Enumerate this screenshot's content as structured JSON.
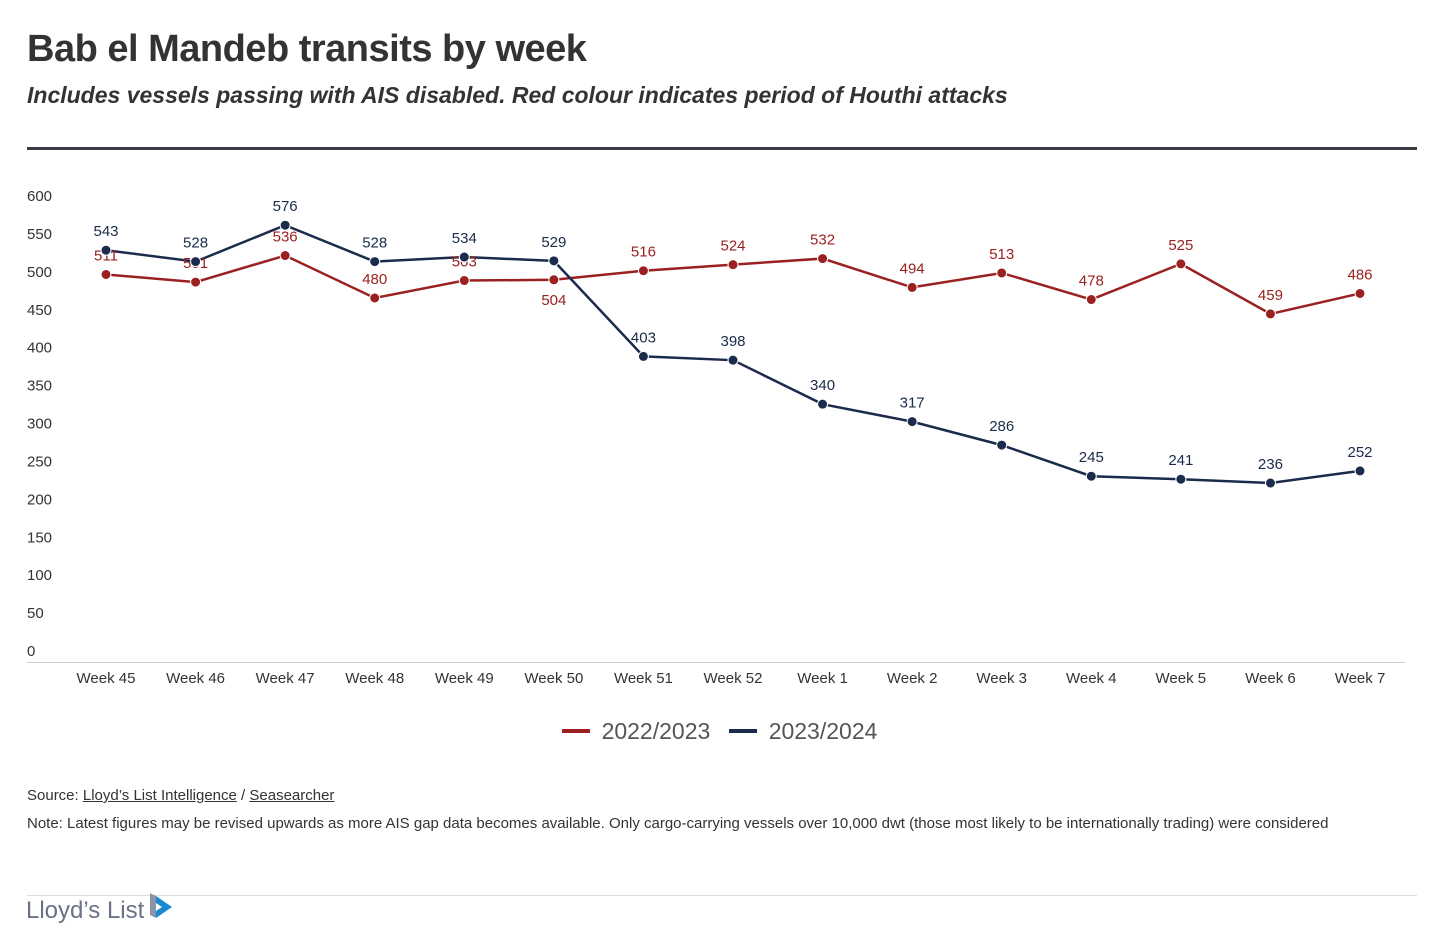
{
  "title": "Bab el Mandeb transits by week",
  "subtitle": "Includes vessels passing with AIS disabled. Red colour indicates period of Houthi attacks",
  "chart_data": {
    "type": "line",
    "categories": [
      "Week 45",
      "Week 46",
      "Week 47",
      "Week 48",
      "Week 49",
      "Week 50",
      "Week 51",
      "Week 52",
      "Week 1",
      "Week 2",
      "Week 3",
      "Week 4",
      "Week 5",
      "Week 6",
      "Week 7"
    ],
    "ylim": [
      0,
      600
    ],
    "yticks": [
      0,
      50,
      100,
      150,
      200,
      250,
      300,
      350,
      400,
      450,
      500,
      550,
      600
    ],
    "grid": false,
    "legend_position": "bottom",
    "series": [
      {
        "name": "2022/2023",
        "color": "#9b2121",
        "values": [
          511,
          501,
          536,
          480,
          503,
          504,
          516,
          524,
          532,
          494,
          513,
          478,
          525,
          459,
          486
        ]
      },
      {
        "name": "2023/2024",
        "color": "#1b2b4b",
        "values": [
          543,
          528,
          576,
          528,
          534,
          529,
          403,
          398,
          340,
          317,
          286,
          245,
          241,
          236,
          252
        ]
      }
    ]
  },
  "source": {
    "label": "Source:",
    "links": [
      "Lloyd’s List Intelligence",
      "Seasearcher"
    ],
    "sep": "/"
  },
  "note": "Note: Latest figures may be revised upwards as more AIS gap data becomes available. Only cargo-carrying vessels over 10,000 dwt (those most likely to be internationally trading) were considered",
  "logo": {
    "text": "Lloyd’s List",
    "color": "#1a8ad0"
  }
}
